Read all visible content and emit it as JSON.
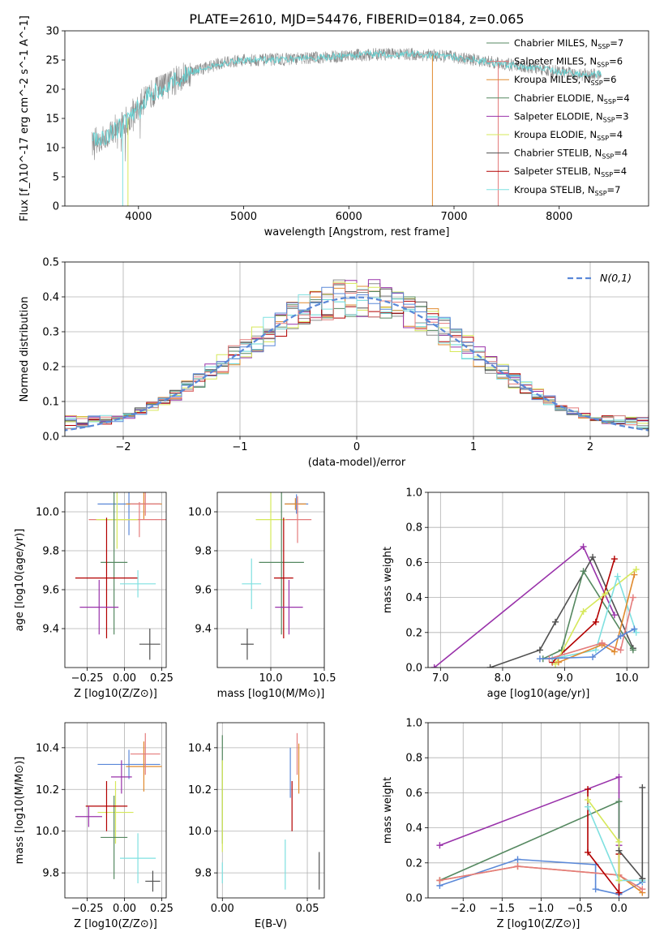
{
  "title": "PLATE=2610, MJD=54476, FIBERID=0184, z=0.065",
  "colors": [
    "#8b8b8b",
    "#63d6d6",
    "#e08a2e",
    "#558860",
    "#9932aa",
    "#d6e85a",
    "#505050",
    "#b30000",
    "#7fe0e0",
    "#e47c7c",
    "#5a88d8"
  ],
  "legend": [
    {
      "prefix": "Chabrier MILES, N",
      "sub": "SSP",
      "suffix": "=7",
      "color": "#558860"
    },
    {
      "prefix": "Salpeter MILES, N",
      "sub": "SSP",
      "suffix": "=6",
      "color": "#e47c7c"
    },
    {
      "prefix": "Kroupa MILES, N",
      "sub": "SSP",
      "suffix": "=6",
      "color": "#e08a2e"
    },
    {
      "prefix": "Chabrier ELODIE, N",
      "sub": "SSP",
      "suffix": "=4",
      "color": "#558860"
    },
    {
      "prefix": "Salpeter ELODIE, N",
      "sub": "SSP",
      "suffix": "=3",
      "color": "#9932aa"
    },
    {
      "prefix": "Kroupa ELODIE, N",
      "sub": "SSP",
      "suffix": "=4",
      "color": "#d6e85a"
    },
    {
      "prefix": "Chabrier STELIB, N",
      "sub": "SSP",
      "suffix": "=4",
      "color": "#505050"
    },
    {
      "prefix": "Salpeter STELIB, N",
      "sub": "SSP",
      "suffix": "=4",
      "color": "#b30000"
    },
    {
      "prefix": "Kroupa STELIB, N",
      "sub": "SSP",
      "suffix": "=7",
      "color": "#7fe0e0"
    }
  ],
  "chart_data": [
    {
      "type": "line",
      "id": "spectrum",
      "xlabel": "wavelength [Angstrom, rest frame]",
      "ylabel": "Flux [f_λ10^-17 erg cm^-2 s^-1 A^-1]",
      "xlim": [
        3300,
        8850
      ],
      "ylim": [
        0,
        30
      ],
      "xticks": [
        4000,
        5000,
        6000,
        7000,
        8000
      ],
      "yticks": [
        0,
        5,
        10,
        15,
        20,
        25,
        30
      ],
      "continuum_x": [
        3560,
        3700,
        3900,
        4100,
        4300,
        4500,
        4800,
        5000,
        5200,
        5500,
        5800,
        6000,
        6300,
        6600,
        6800,
        7000,
        7200,
        7400,
        7600,
        7800,
        8000,
        8200,
        8400
      ],
      "continuum_y": [
        11,
        12,
        15,
        19,
        21,
        23,
        24.5,
        25,
        25,
        25.2,
        25.5,
        25.8,
        26,
        26,
        25.8,
        25.5,
        25,
        24.5,
        24,
        23.5,
        23,
        22.5,
        22.5
      ],
      "data_color": "#8b8b8b",
      "model_color": "#63d6d6"
    },
    {
      "type": "bar",
      "id": "residuals",
      "xlabel": "(data-model)/error",
      "ylabel": "Normed distribution",
      "xlim": [
        -2.5,
        2.5
      ],
      "ylim": [
        0,
        0.5
      ],
      "xticks": [
        -2,
        -1,
        0,
        1,
        2
      ],
      "yticks": [
        0.0,
        0.1,
        0.2,
        0.3,
        0.4,
        0.5
      ],
      "bin_width": 0.1,
      "legend": "N(0,1)",
      "gaussian_color": "#5a88d8"
    },
    {
      "type": "scatter",
      "id": "age_vs_Z",
      "xlabel": "Z [log10(Z/Z⊙)]",
      "ylabel": "age  [log10(age/yr)]",
      "xlim": [
        -0.4,
        0.28
      ],
      "ylim": [
        9.2,
        10.1
      ],
      "xticks": [
        -0.25,
        0.0,
        0.25
      ],
      "yticks": [
        9.4,
        9.6,
        9.8,
        10.0
      ],
      "points": [
        {
          "x": 0.03,
          "y": 10.04,
          "xerr": 0.21,
          "yerr": 0.16,
          "color": "#5a88d8"
        },
        {
          "x": 0.13,
          "y": 10.04,
          "xerr": 0.12,
          "yerr": 0.08,
          "color": "#e08a2e"
        },
        {
          "x": 0.14,
          "y": 10.04,
          "xerr": 0.1,
          "yerr": 0.06,
          "color": "#e47c7c"
        },
        {
          "x": 0.1,
          "y": 9.96,
          "xerr": 0.34,
          "yerr": 0.09,
          "color": "#e47c7c"
        },
        {
          "x": -0.05,
          "y": 9.96,
          "xerr": 0.14,
          "yerr": 0.15,
          "color": "#d6e85a"
        },
        {
          "x": -0.07,
          "y": 9.74,
          "xerr": 0.09,
          "yerr": 0.37,
          "color": "#558860"
        },
        {
          "x": -0.12,
          "y": 9.66,
          "xerr": 0.21,
          "yerr": 0.31,
          "color": "#b30000"
        },
        {
          "x": 0.09,
          "y": 9.63,
          "xerr": 0.12,
          "yerr": 0.07,
          "color": "#7fe0e0"
        },
        {
          "x": -0.17,
          "y": 9.51,
          "xerr": 0.13,
          "yerr": 0.14,
          "color": "#9932aa"
        },
        {
          "x": 0.17,
          "y": 9.32,
          "xerr": 0.07,
          "yerr": 0.08,
          "color": "#505050"
        }
      ]
    },
    {
      "type": "scatter",
      "id": "age_vs_mass",
      "xlabel": "mass [log10(M/M⊙)]",
      "ylabel": "",
      "xlim": [
        9.5,
        10.5
      ],
      "ylim": [
        9.2,
        10.1
      ],
      "xticks": [
        10.0,
        10.5
      ],
      "yticks": [
        9.4,
        9.6,
        9.8,
        10.0
      ],
      "points": [
        {
          "x": 10.24,
          "y": 10.04,
          "xerr": 0.11,
          "yerr": 0.05,
          "color": "#5a88d8"
        },
        {
          "x": 10.23,
          "y": 10.04,
          "xerr": 0.1,
          "yerr": 0.03,
          "color": "#e08a2e"
        },
        {
          "x": 10.25,
          "y": 9.96,
          "xerr": 0.13,
          "yerr": 0.12,
          "color": "#e47c7c"
        },
        {
          "x": 10.0,
          "y": 9.96,
          "xerr": 0.14,
          "yerr": 0.15,
          "color": "#d6e85a"
        },
        {
          "x": 10.1,
          "y": 9.74,
          "xerr": 0.21,
          "yerr": 0.37,
          "color": "#558860"
        },
        {
          "x": 10.12,
          "y": 9.66,
          "xerr": 0.09,
          "yerr": 0.31,
          "color": "#b30000"
        },
        {
          "x": 9.82,
          "y": 9.63,
          "xerr": 0.09,
          "yerr": 0.13,
          "color": "#7fe0e0"
        },
        {
          "x": 10.17,
          "y": 9.51,
          "xerr": 0.13,
          "yerr": 0.14,
          "color": "#9932aa"
        },
        {
          "x": 9.78,
          "y": 9.32,
          "xerr": 0.06,
          "yerr": 0.08,
          "color": "#505050"
        }
      ]
    },
    {
      "type": "line",
      "id": "weight_vs_age",
      "xlabel": "age  [log10(age/yr)]",
      "ylabel": "mass weight",
      "xlim": [
        6.8,
        10.35
      ],
      "ylim": [
        0,
        1
      ],
      "xticks": [
        7,
        8,
        9,
        10
      ],
      "yticks": [
        0.0,
        0.2,
        0.4,
        0.6,
        0.8,
        1.0
      ],
      "series": [
        {
          "color": "#9932aa",
          "x": [
            6.9,
            9.3,
            9.8
          ],
          "y": [
            0.0,
            0.69,
            0.3
          ]
        },
        {
          "color": "#505050",
          "x": [
            7.8,
            8.6,
            8.85,
            9.45,
            10.1
          ],
          "y": [
            0.0,
            0.1,
            0.26,
            0.63,
            0.11
          ]
        },
        {
          "color": "#558860",
          "x": [
            8.65,
            8.95,
            9.3,
            10.1
          ],
          "y": [
            0.05,
            0.1,
            0.55,
            0.1
          ]
        },
        {
          "color": "#b30000",
          "x": [
            8.8,
            9.5,
            9.8
          ],
          "y": [
            0.03,
            0.26,
            0.62
          ]
        },
        {
          "color": "#d6e85a",
          "x": [
            8.85,
            9.3,
            9.65,
            10.15
          ],
          "y": [
            0.02,
            0.32,
            0.42,
            0.56
          ]
        },
        {
          "color": "#7fe0e0",
          "x": [
            8.8,
            9.5,
            9.85,
            10.15
          ],
          "y": [
            0.05,
            0.1,
            0.52,
            0.2
          ]
        },
        {
          "color": "#e08a2e",
          "x": [
            8.9,
            9.6,
            9.8,
            10.12
          ],
          "y": [
            0.03,
            0.13,
            0.09,
            0.53
          ]
        },
        {
          "color": "#e47c7c",
          "x": [
            8.75,
            9.6,
            9.9,
            10.1
          ],
          "y": [
            0.05,
            0.14,
            0.1,
            0.4
          ]
        },
        {
          "color": "#5a88d8",
          "x": [
            8.6,
            9.45,
            9.9,
            10.12
          ],
          "y": [
            0.05,
            0.06,
            0.18,
            0.22
          ]
        }
      ]
    },
    {
      "type": "scatter",
      "id": "mass_vs_Z",
      "xlabel": "Z [log10(Z/Z⊙)]",
      "ylabel": "mass [log10(M/M⊙)]",
      "xlim": [
        -0.4,
        0.28
      ],
      "ylim": [
        9.68,
        10.52
      ],
      "xticks": [
        -0.25,
        0.0,
        0.25
      ],
      "yticks": [
        9.8,
        10.0,
        10.2,
        10.4
      ],
      "points": [
        {
          "x": 0.03,
          "y": 10.32,
          "xerr": 0.21,
          "yerr": 0.07,
          "color": "#5a88d8"
        },
        {
          "x": 0.13,
          "y": 10.31,
          "xerr": 0.12,
          "yerr": 0.12,
          "color": "#e08a2e"
        },
        {
          "x": 0.14,
          "y": 10.37,
          "xerr": 0.1,
          "yerr": 0.1,
          "color": "#e47c7c"
        },
        {
          "x": -0.06,
          "y": 10.09,
          "xerr": 0.12,
          "yerr": 0.15,
          "color": "#d6e85a"
        },
        {
          "x": -0.07,
          "y": 9.97,
          "xerr": 0.09,
          "yerr": 0.2,
          "color": "#558860"
        },
        {
          "x": -0.12,
          "y": 10.12,
          "xerr": 0.14,
          "yerr": 0.12,
          "color": "#b30000"
        },
        {
          "x": -0.02,
          "y": 10.26,
          "xerr": 0.07,
          "yerr": 0.08,
          "color": "#9932aa"
        },
        {
          "x": -0.24,
          "y": 10.07,
          "xerr": 0.09,
          "yerr": 0.05,
          "color": "#9932aa"
        },
        {
          "x": 0.09,
          "y": 9.87,
          "xerr": 0.12,
          "yerr": 0.12,
          "color": "#7fe0e0"
        },
        {
          "x": 0.19,
          "y": 9.76,
          "xerr": 0.05,
          "yerr": 0.05,
          "color": "#505050"
        }
      ]
    },
    {
      "type": "scatter",
      "id": "mass_vs_EBV",
      "xlabel": "E(B-V)",
      "ylabel": "",
      "xlim": [
        -0.003,
        0.06
      ],
      "ylim": [
        9.68,
        10.52
      ],
      "xticks": [
        0.0,
        0.05
      ],
      "yticks": [
        9.8,
        10.0,
        10.2,
        10.4
      ],
      "points": [
        {
          "x": 0.0,
          "y": 10.2,
          "yerr": 0.26,
          "color": "#558860"
        },
        {
          "x": 0.0,
          "y": 10.12,
          "yerr": 0.22,
          "color": "#d6e85a"
        },
        {
          "x": 0.0,
          "y": 9.8,
          "yerr": 0.05,
          "color": "#7fe0e0"
        },
        {
          "x": 0.04,
          "y": 10.28,
          "yerr": 0.12,
          "color": "#5a88d8"
        },
        {
          "x": 0.041,
          "y": 10.12,
          "yerr": 0.12,
          "color": "#b30000"
        },
        {
          "x": 0.044,
          "y": 10.37,
          "yerr": 0.1,
          "color": "#e47c7c"
        },
        {
          "x": 0.045,
          "y": 10.3,
          "yerr": 0.12,
          "color": "#e08a2e"
        },
        {
          "x": 0.037,
          "y": 9.84,
          "yerr": 0.12,
          "color": "#7fe0e0"
        },
        {
          "x": 0.057,
          "y": 9.81,
          "yerr": 0.09,
          "color": "#505050"
        }
      ]
    },
    {
      "type": "line",
      "id": "weight_vs_Z",
      "xlabel": "Z [log10(Z/Z⊙)]",
      "ylabel": "mass weight",
      "xlim": [
        -2.45,
        0.38
      ],
      "ylim": [
        0,
        1
      ],
      "xticks": [
        -2.0,
        -1.5,
        -1.0,
        -0.5,
        0.0
      ],
      "yticks": [
        0.0,
        0.2,
        0.4,
        0.6,
        0.8,
        1.0
      ],
      "series": [
        {
          "color": "#9932aa",
          "x": [
            -2.3,
            0.0,
            0.0
          ],
          "y": [
            0.3,
            0.69,
            0.3
          ]
        },
        {
          "color": "#558860",
          "x": [
            -2.3,
            0.0,
            0.0
          ],
          "y": [
            0.1,
            0.55,
            0.1
          ]
        },
        {
          "color": "#5a88d8",
          "x": [
            -2.3,
            -1.3,
            -0.3,
            -0.3,
            0.0,
            0.3
          ],
          "y": [
            0.07,
            0.22,
            0.19,
            0.05,
            0.02,
            0.09
          ]
        },
        {
          "color": "#e08a2e",
          "x": [
            -2.3,
            -1.3,
            0.0,
            0.3
          ],
          "y": [
            0.1,
            0.18,
            0.13,
            0.03
          ]
        },
        {
          "color": "#e47c7c",
          "x": [
            -2.3,
            -1.3,
            0.0,
            0.3
          ],
          "y": [
            0.1,
            0.18,
            0.13,
            0.05
          ]
        },
        {
          "color": "#b30000",
          "x": [
            -0.4,
            -0.4,
            0.0,
            0.0
          ],
          "y": [
            0.62,
            0.26,
            0.03,
            0.25
          ]
        },
        {
          "color": "#7fe0e0",
          "x": [
            -0.4,
            0.0,
            0.3
          ],
          "y": [
            0.52,
            0.1,
            0.1
          ]
        },
        {
          "color": "#d6e85a",
          "x": [
            -0.4,
            0.0,
            0.0
          ],
          "y": [
            0.56,
            0.32,
            0.1
          ]
        },
        {
          "color": "#505050",
          "x": [
            0.3,
            0.3,
            0.0
          ],
          "y": [
            0.63,
            0.11,
            0.27
          ]
        }
      ]
    }
  ]
}
